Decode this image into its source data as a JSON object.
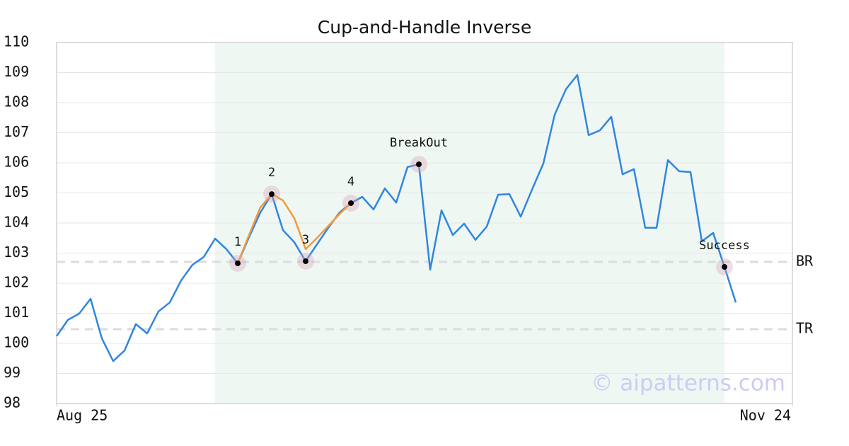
{
  "chart_data": {
    "type": "line",
    "title": "Cup-and-Handle Inverse",
    "xlim": [
      0,
      65
    ],
    "xticks": [
      {
        "value": 0,
        "label": "Aug 25"
      },
      {
        "value": 65,
        "label": "Nov 24"
      }
    ],
    "ylim": [
      98,
      110
    ],
    "yticks": [
      98,
      99,
      100,
      101,
      102,
      103,
      104,
      105,
      106,
      107,
      108,
      109,
      110
    ],
    "grid": true,
    "highlight": [
      14,
      59
    ],
    "highlight_color": "#eff7f3",
    "series": [
      {
        "color": "#2f86e0",
        "x": [
          0,
          1,
          2,
          3,
          4,
          5,
          6,
          7,
          8,
          9,
          10,
          11,
          12,
          13,
          14,
          15,
          16,
          17,
          18,
          19,
          20,
          21,
          22,
          23,
          24,
          25,
          26,
          27,
          28,
          29,
          30,
          31,
          32,
          33,
          34,
          35,
          36,
          37,
          38,
          39,
          40,
          41,
          42,
          43,
          44,
          45,
          46,
          47,
          48,
          49,
          50,
          51,
          52,
          53,
          54,
          55,
          56,
          57,
          58,
          59,
          60
        ],
        "values": [
          100.24,
          100.78,
          100.99,
          101.48,
          100.16,
          99.41,
          99.76,
          100.64,
          100.33,
          101.06,
          101.36,
          102.09,
          102.61,
          102.87,
          103.48,
          103.13,
          102.66,
          103.53,
          104.35,
          104.96,
          103.76,
          103.36,
          102.73,
          103.29,
          103.84,
          104.35,
          104.66,
          104.87,
          104.45,
          105.15,
          104.68,
          105.86,
          105.95,
          102.45,
          104.42,
          103.6,
          103.98,
          103.44,
          103.88,
          104.94,
          104.96,
          104.21,
          105.11,
          105.98,
          107.6,
          108.45,
          108.92,
          106.92,
          107.08,
          107.53,
          105.62,
          105.79,
          103.84,
          103.84,
          106.09,
          105.72,
          105.69,
          103.39,
          103.67,
          102.54,
          101.36
        ]
      },
      {
        "color": "#f29a3c",
        "x": [
          16,
          17,
          18,
          19,
          20,
          21,
          22,
          23,
          24,
          25,
          26
        ],
        "values": [
          102.66,
          103.6,
          104.52,
          104.96,
          104.75,
          104.16,
          103.13,
          103.5,
          103.9,
          104.3,
          104.66
        ]
      }
    ],
    "hlines": [
      {
        "label": "BR",
        "value": 102.71
      },
      {
        "label": "TR",
        "value": 100.47
      }
    ],
    "annotations": [
      {
        "label": "1",
        "x": 16,
        "y": 102.66
      },
      {
        "label": "2",
        "x": 19,
        "y": 104.96
      },
      {
        "label": "3",
        "x": 22,
        "y": 102.73
      },
      {
        "label": "4",
        "x": 26,
        "y": 104.66
      },
      {
        "label": "BreakOut",
        "x": 32,
        "y": 105.95
      },
      {
        "label": "Success",
        "x": 59,
        "y": 102.54
      }
    ],
    "watermark": "© aipatterns.com"
  }
}
